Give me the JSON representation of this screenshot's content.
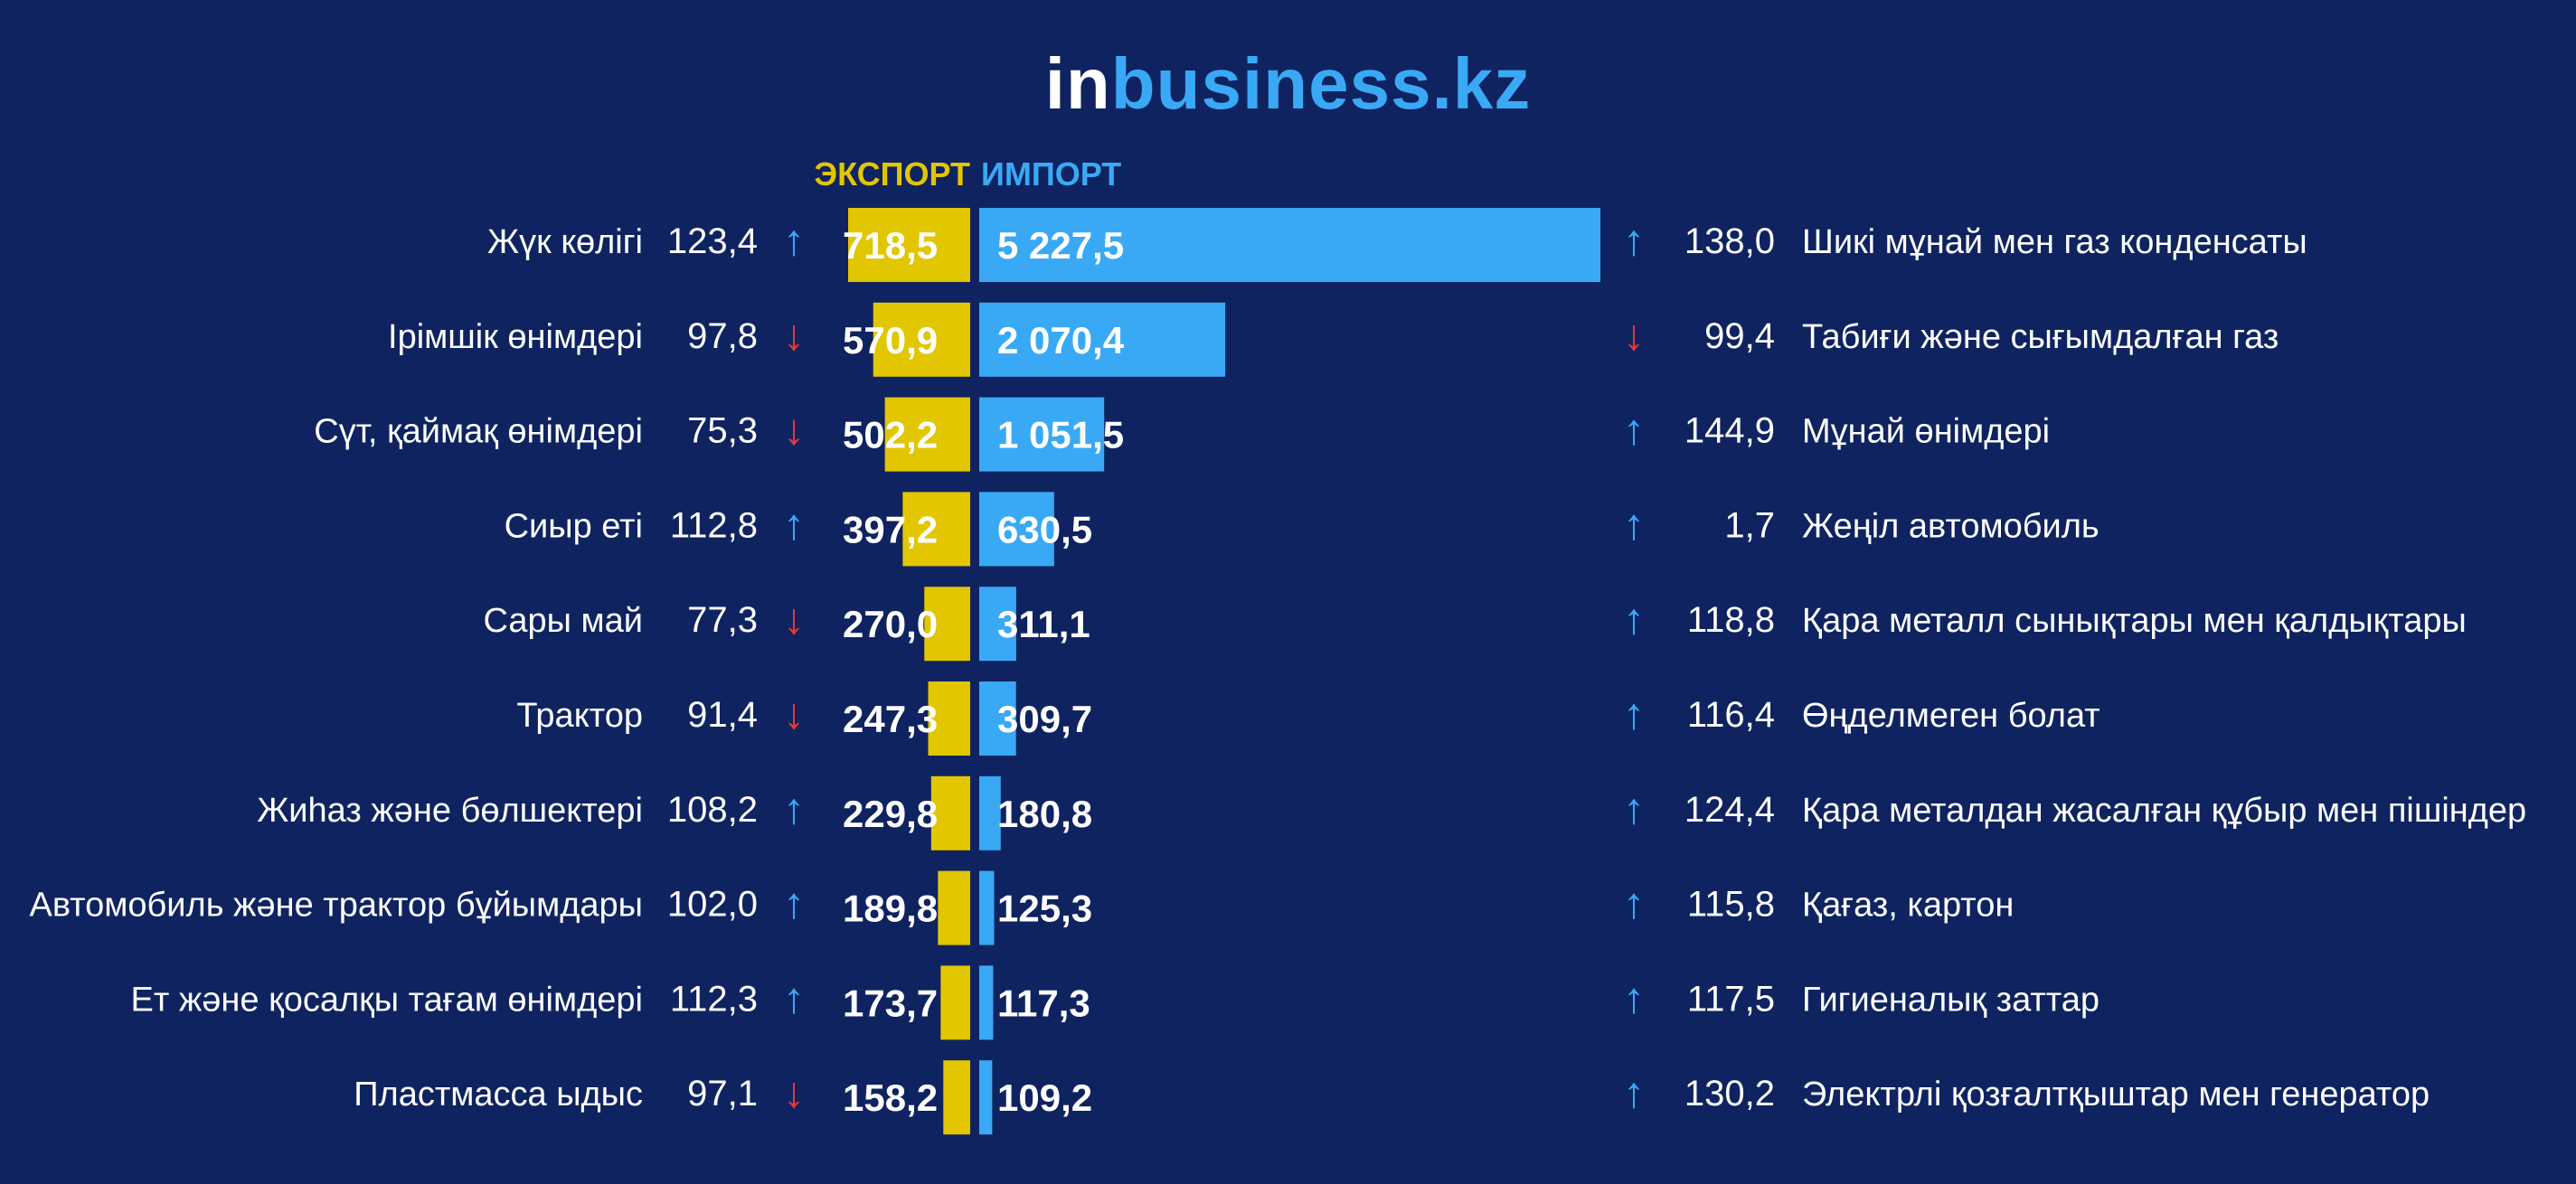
{
  "logo": {
    "part1": "in",
    "part2": "business.kz"
  },
  "chart_data": {
    "type": "bar",
    "series_names": {
      "export": "ЭКСПОРТ",
      "import": "ИМПОРТ"
    },
    "colors": {
      "export": "#e2c600",
      "import": "#3aa9f5",
      "up": "#3aa9f5",
      "down": "#e53935",
      "background": "#0f2361"
    },
    "arrow_glyphs": {
      "up": "↑",
      "down": "↓"
    },
    "export": [
      {
        "name": "Жүк көлігі",
        "change": "123,4",
        "dir": "up",
        "value": 718.5,
        "label": "718,5"
      },
      {
        "name": "Ірімшік өнімдері",
        "change": "97,8",
        "dir": "down",
        "value": 570.9,
        "label": "570,9"
      },
      {
        "name": "Сүт, қаймақ өнімдері",
        "change": "75,3",
        "dir": "down",
        "value": 502.2,
        "label": "502,2"
      },
      {
        "name": "Сиыр еті",
        "change": "112,8",
        "dir": "up",
        "value": 397.2,
        "label": "397,2"
      },
      {
        "name": "Сары май",
        "change": "77,3",
        "dir": "down",
        "value": 270.0,
        "label": "270,0"
      },
      {
        "name": "Трактор",
        "change": "91,4",
        "dir": "down",
        "value": 247.3,
        "label": "247,3"
      },
      {
        "name": "Жиһаз және бөлшектері",
        "change": "108,2",
        "dir": "up",
        "value": 229.8,
        "label": "229,8"
      },
      {
        "name": "Автомобиль және трактор бұйымдары",
        "change": "102,0",
        "dir": "up",
        "value": 189.8,
        "label": "189,8"
      },
      {
        "name": "Ет және қосалқы тағам өнімдері",
        "change": "112,3",
        "dir": "up",
        "value": 173.7,
        "label": "173,7"
      },
      {
        "name": "Пластмасса ыдыс",
        "change": "97,1",
        "dir": "down",
        "value": 158.2,
        "label": "158,2"
      }
    ],
    "import": [
      {
        "name": "Шикі мұнай мен газ конденсаты",
        "change": "138,0",
        "dir": "up",
        "value": 5227.5,
        "label": "5 227,5"
      },
      {
        "name": "Табиғи және сығымдалған газ",
        "change": "99,4",
        "dir": "down",
        "value": 2070.4,
        "label": "2 070,4"
      },
      {
        "name": "Мұнай өнімдері",
        "change": "144,9",
        "dir": "up",
        "value": 1051.5,
        "label": "1 051,5"
      },
      {
        "name": "Жеңіл автомобиль",
        "change": "1,7",
        "dir": "up",
        "value": 630.5,
        "label": "630,5"
      },
      {
        "name": "Қара металл сынықтары мен қалдықтары",
        "change": "118,8",
        "dir": "up",
        "value": 311.1,
        "label": "311,1"
      },
      {
        "name": "Өңделмеген болат",
        "change": "116,4",
        "dir": "up",
        "value": 309.7,
        "label": "309,7"
      },
      {
        "name": "Қара металдан жасалған құбыр мен пішіндер",
        "change": "124,4",
        "dir": "up",
        "value": 180.8,
        "label": "180,8"
      },
      {
        "name": "Қағаз, картон",
        "change": "115,8",
        "dir": "up",
        "value": 125.3,
        "label": "125,3"
      },
      {
        "name": "Гигиеналық заттар",
        "change": "117,5",
        "dir": "up",
        "value": 117.3,
        "label": "117,3"
      },
      {
        "name": "Электрлі қозғалтқыштар мен генератор",
        "change": "130,2",
        "dir": "up",
        "value": 109.2,
        "label": "109,2"
      }
    ]
  }
}
